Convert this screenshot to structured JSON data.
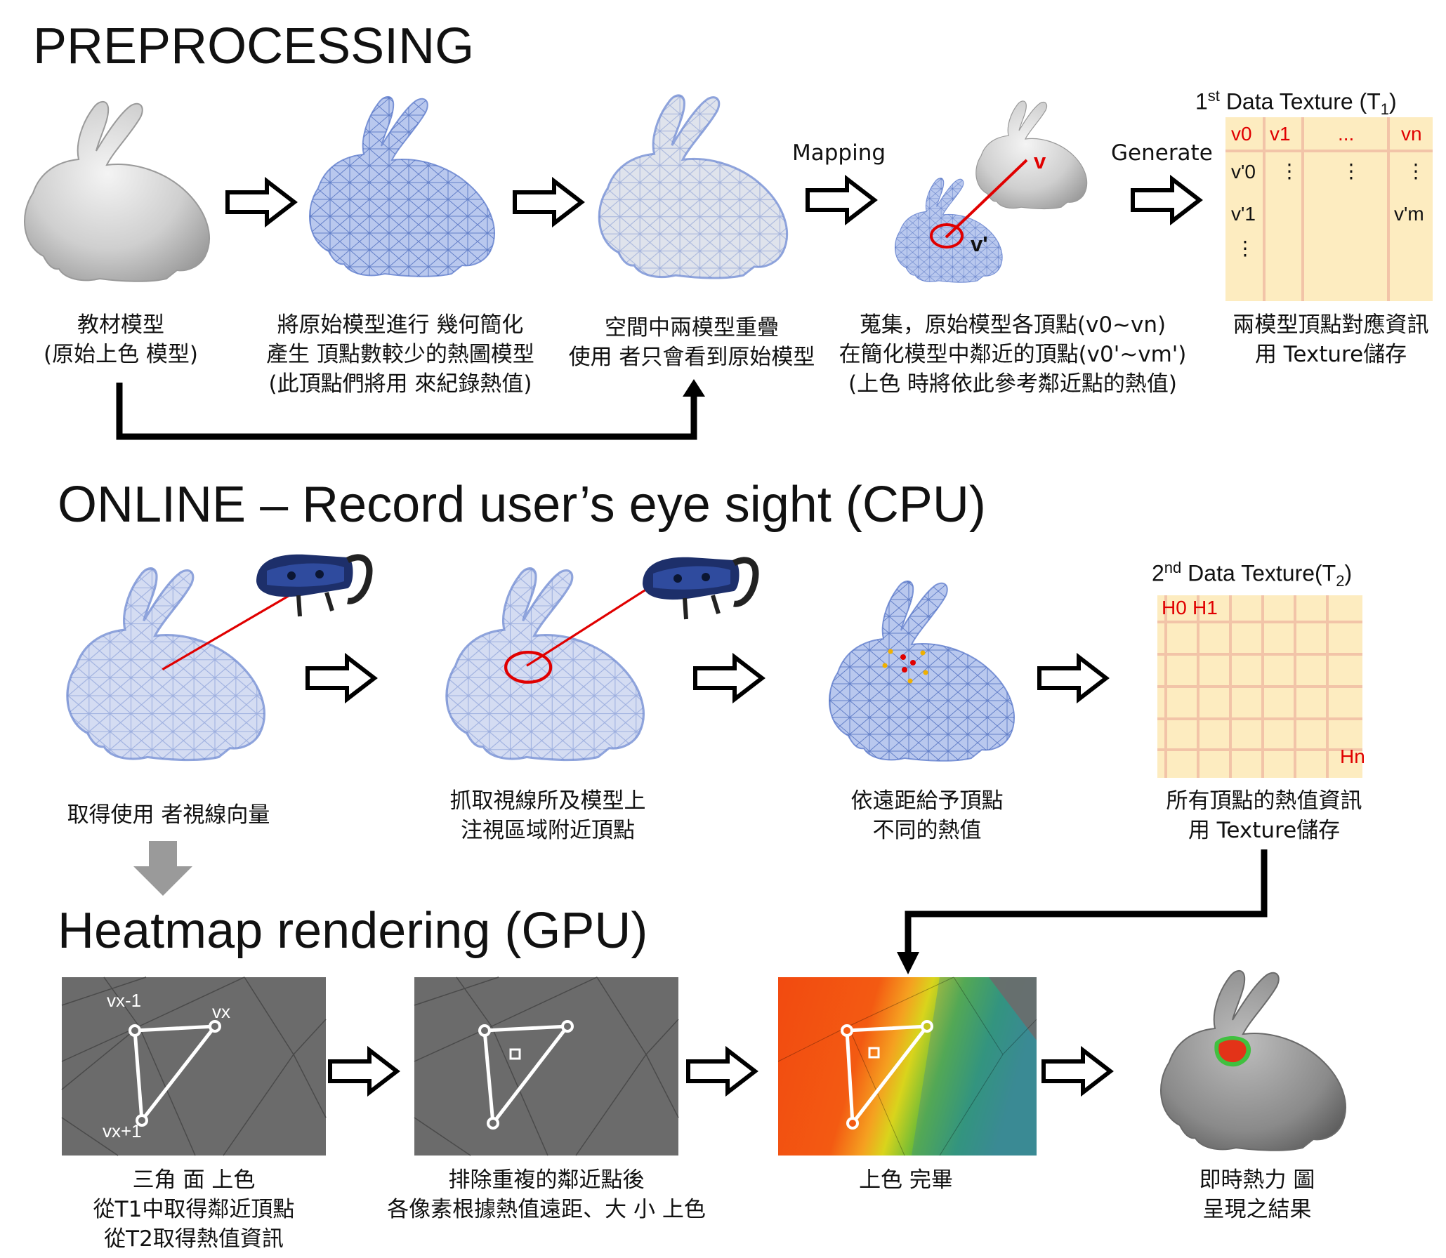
{
  "sections": {
    "preprocessing": "PREPROCESSING",
    "online": "ONLINE – Record user’s eye sight (CPU)",
    "heatmap": "Heatmap rendering (GPU)"
  },
  "pre": {
    "mapping_label": "Mapping",
    "generate_label": "Generate",
    "v_label": "v",
    "vprime_label": "v'",
    "t1_title_prefix": "1",
    "t1_title_sup": "st",
    "t1_title_rest": " Data Texture (T",
    "t1_title_sub": "1",
    "t1_title_end": ")",
    "t1_cols": [
      "v0",
      "v1",
      "...",
      "vn"
    ],
    "t1_rows": [
      "v'0",
      "v'1",
      "⋮"
    ],
    "t1_vm": "v'm",
    "captions": [
      {
        "lines": [
          "教材模型",
          "(原始上色 模型)"
        ]
      },
      {
        "lines": [
          "將原始模型進行 幾何簡化",
          "產生 頂點數較少的熱圖模型",
          "(此頂點們將用 來紀錄熱值)"
        ]
      },
      {
        "lines": [
          "空間中兩模型重疊",
          "使用 者只會看到原始模型"
        ]
      },
      {
        "lines": [
          "蒐集，原始模型各頂點(v0~vn)",
          "在簡化模型中鄰近的頂點(v0'~vm')",
          "(上色 時將依此參考鄰近點的熱值)"
        ]
      },
      {
        "lines": [
          "兩模型頂點對應資訊",
          "用 Texture儲存"
        ]
      }
    ]
  },
  "online": {
    "t2_title_prefix": "2",
    "t2_title_sup": "nd",
    "t2_title_rest": " Data Texture(T",
    "t2_title_sub": "2",
    "t2_title_end": ")",
    "h_labels": [
      "H0",
      "H1",
      "Hn"
    ],
    "captions": [
      {
        "lines": [
          "取得使用 者視線向量"
        ]
      },
      {
        "lines": [
          "抓取視線所及模型上",
          "注視區域附近頂點"
        ]
      },
      {
        "lines": [
          "依遠距給予頂點",
          "不同的熱值"
        ]
      },
      {
        "lines": [
          "所有頂點的熱值資訊",
          "用 Texture儲存"
        ]
      }
    ]
  },
  "gpu": {
    "vx_minus": "vx-1",
    "vx": "vx",
    "vx_plus": "vx+1",
    "captions": [
      {
        "lines": [
          "三角 面 上色",
          "從T1中取得鄰近頂點",
          "從T2取得熱值資訊"
        ]
      },
      {
        "lines": [
          "排除重複的鄰近點後",
          "各像素根據熱值遠距、大 小 上色"
        ]
      },
      {
        "lines": [
          "上色 完畢"
        ]
      },
      {
        "lines": [
          "即時熱力 圖",
          "呈現之結果"
        ]
      }
    ]
  },
  "colors": {
    "accent_red": "#e00000",
    "texture_bg": "#fdecc0",
    "texture_line": "#f2c4a8",
    "mesh_blue": "#6f8fd8",
    "panel_gray": "#6b6b6b"
  }
}
